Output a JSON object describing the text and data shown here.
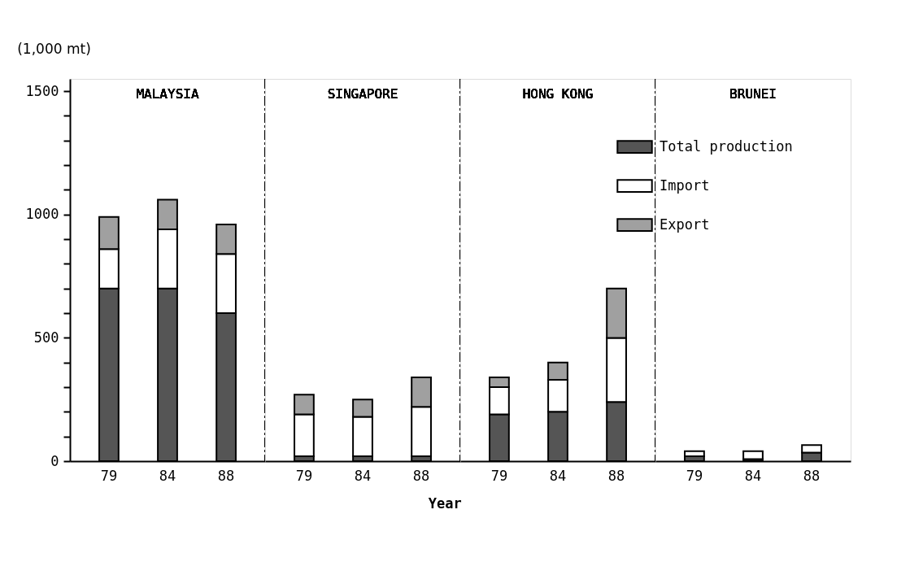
{
  "chart_data": [
    {
      "type": "bar",
      "stacked": true,
      "title": "MALAYSIA",
      "ylabel": "(1,000 mt)",
      "categories": [
        "79",
        "84",
        "88"
      ],
      "ylim": [
        0,
        1550
      ],
      "yticks": [
        0,
        {
          "value": 100,
          "label": null
        },
        {
          "value": 200,
          "label": null
        },
        {
          "value": 300,
          "label": null
        },
        {
          "value": 400,
          "label": null
        },
        500,
        {
          "value": 600,
          "label": null
        },
        {
          "value": 700,
          "label": null
        },
        {
          "value": 800,
          "label": null
        },
        {
          "value": 900,
          "label": null
        },
        1000,
        {
          "value": 1100,
          "label": null
        },
        {
          "value": 1200,
          "label": null
        },
        {
          "value": 1300,
          "label": null
        },
        {
          "value": 1400,
          "label": null
        },
        1500
      ],
      "grid": false,
      "legend": false,
      "series": [
        {
          "color": "#555555",
          "values": [
            700,
            700,
            600
          ]
        },
        {
          "color": "#ffffff",
          "values": [
            160,
            240,
            240
          ]
        },
        {
          "color": "#a0a0a0",
          "values": [
            130,
            120,
            120
          ]
        }
      ]
    },
    {
      "type": "bar",
      "stacked": true,
      "title": "SINGAPORE",
      "xlabel": "Year",
      "categories": [
        "79",
        "84",
        "88"
      ],
      "ylim": [
        0,
        1550
      ],
      "tick_labels": "x",
      "grid": false,
      "legend": false,
      "series": [
        {
          "color": "#555555",
          "values": [
            20,
            20,
            20
          ]
        },
        {
          "color": "#ffffff",
          "values": [
            170,
            160,
            200
          ]
        },
        {
          "color": "#a0a0a0",
          "values": [
            80,
            70,
            120
          ]
        }
      ]
    },
    {
      "type": "bar",
      "stacked": true,
      "title": "HONG KONG",
      "categories": [
        "79",
        "84",
        "88"
      ],
      "ylim": [
        0,
        1550
      ],
      "tick_labels": "x",
      "grid": false,
      "legend": "top right",
      "series": [
        {
          "name": "Total production",
          "color": "#555555",
          "values": [
            190,
            200,
            240
          ]
        },
        {
          "name": "Import",
          "color": "#ffffff",
          "values": [
            110,
            130,
            260
          ]
        },
        {
          "name": "Export",
          "color": "#a0a0a0",
          "values": [
            40,
            70,
            200
          ]
        }
      ]
    },
    {
      "type": "bar",
      "stacked": true,
      "title": "BRUNEI",
      "categories": [
        "79",
        "84",
        "88"
      ],
      "ylim": [
        0,
        1550
      ],
      "tick_labels": "x",
      "grid": false,
      "legend": false,
      "series": [
        {
          "color": "#555555",
          "values": [
            20,
            8,
            35
          ]
        },
        {
          "color": "#ffffff",
          "values": [
            20,
            32,
            30
          ]
        },
        {
          "color": "#a0a0a0",
          "values": [
            null,
            null,
            null
          ]
        }
      ]
    }
  ]
}
